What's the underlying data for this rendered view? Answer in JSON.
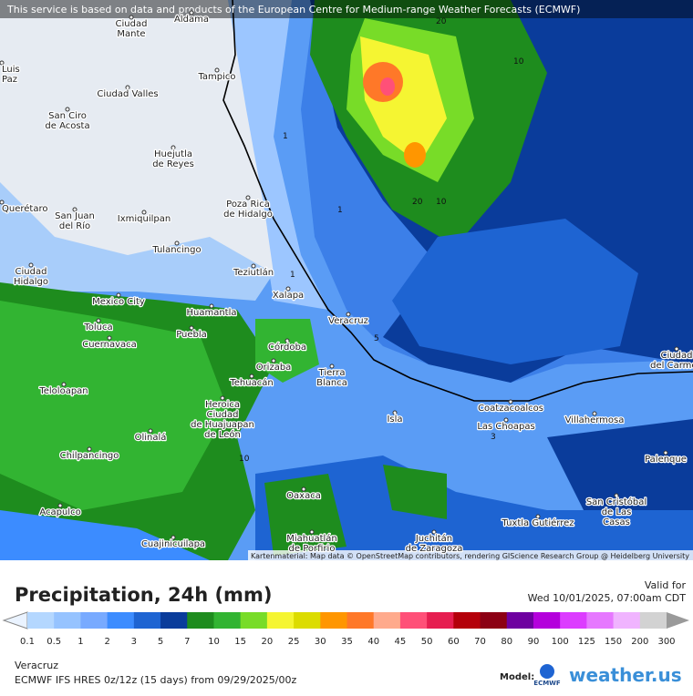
{
  "header": {
    "notice": "This service is based on data and products of the European Centre for Medium-range Weather Forecasts (ECMWF)",
    "attribution": "Kartenmaterial: Map data © OpenStreetMap contributors, rendering GIScience Research Group @ Heidelberg University"
  },
  "map": {
    "places": [
      {
        "lines": [
          "Ciudad",
          "Mante"
        ]
      },
      {
        "lines": [
          "Aldama"
        ]
      },
      {
        "lines": [
          "Tampico"
        ]
      },
      {
        "lines": [
          "Ciudad Valles"
        ]
      },
      {
        "lines": [
          "San Ciro",
          "de Acosta"
        ]
      },
      {
        "lines": [
          "Luis",
          "Paz"
        ]
      },
      {
        "lines": [
          "Huejutla",
          "de Reyes"
        ]
      },
      {
        "lines": [
          "Poza Rica",
          "de Hidalgo"
        ]
      },
      {
        "lines": [
          "Querétaro"
        ]
      },
      {
        "lines": [
          "San Juan",
          "del Río"
        ]
      },
      {
        "lines": [
          "Ixmiquilpan"
        ]
      },
      {
        "lines": [
          "Tulancingo"
        ]
      },
      {
        "lines": [
          "Ciudad",
          "Hidalgo"
        ]
      },
      {
        "lines": [
          "Teziutlán"
        ]
      },
      {
        "lines": [
          "Xalapa"
        ]
      },
      {
        "lines": [
          "Mexico City"
        ]
      },
      {
        "lines": [
          "Huamantla"
        ]
      },
      {
        "lines": [
          "Veracruz"
        ]
      },
      {
        "lines": [
          "Toluca"
        ]
      },
      {
        "lines": [
          "Puebla"
        ]
      },
      {
        "lines": [
          "Cuernavaca"
        ]
      },
      {
        "lines": [
          "Córdoba"
        ]
      },
      {
        "lines": [
          "Orizaba"
        ]
      },
      {
        "lines": [
          "Teloloapan"
        ]
      },
      {
        "lines": [
          "Tehuacán"
        ]
      },
      {
        "lines": [
          "Tierra",
          "Blanca"
        ]
      },
      {
        "lines": [
          "Heroica",
          "Ciudad",
          "de Huajuapan",
          "de León"
        ]
      },
      {
        "lines": [
          "Olinalá"
        ]
      },
      {
        "lines": [
          "Isla"
        ]
      },
      {
        "lines": [
          "Coatzacoalcos"
        ]
      },
      {
        "lines": [
          "Las Choapas"
        ]
      },
      {
        "lines": [
          "Villahermosa"
        ]
      },
      {
        "lines": [
          "Chilpancingo"
        ]
      },
      {
        "lines": [
          "Oaxaca"
        ]
      },
      {
        "lines": [
          "Acapulco"
        ]
      },
      {
        "lines": [
          "Miahuatlán",
          "de Porfirio"
        ]
      },
      {
        "lines": [
          "Juchitán",
          "de Zaragoza"
        ]
      },
      {
        "lines": [
          "Tuxtla Gutiérrez"
        ]
      },
      {
        "lines": [
          "San Cristóbal",
          "de Las",
          "Casas"
        ]
      },
      {
        "lines": [
          "Palenque"
        ]
      },
      {
        "lines": [
          "Ciudad",
          "del Carmen"
        ]
      },
      {
        "lines": [
          "Cuajinicuilapa"
        ]
      }
    ],
    "contours": [
      "20",
      "10",
      "20",
      "10",
      "1",
      "1",
      "1",
      "10",
      "5",
      "3"
    ]
  },
  "footer": {
    "title": "Precipitation, 24h (mm)",
    "valid_label": "Valid for",
    "valid_time": "Wed 10/01/2025, 07:00am CDT",
    "location": "Veracruz",
    "model_run": "ECMWF IFS HRES 0z/12z (15 days) from  09/29/2025/00z",
    "model_label": "Model:",
    "model_name": "ECMWF",
    "brand": "weather.us"
  },
  "legend": {
    "under_color": "#eaf3ff",
    "over_color": "#9a9a9a",
    "ticks": [
      "0.1",
      "0.5",
      "1",
      "2",
      "3",
      "5",
      "7",
      "10",
      "15",
      "20",
      "25",
      "30",
      "35",
      "40",
      "45",
      "50",
      "60",
      "70",
      "80",
      "90",
      "100",
      "125",
      "150",
      "200",
      "300"
    ],
    "colors": [
      "#b4d7ff",
      "#96c3ff",
      "#78aaff",
      "#3c8cff",
      "#1e64d2",
      "#0a3c9b",
      "#1e8c1e",
      "#32b432",
      "#78dc28",
      "#f5f532",
      "#dcdc00",
      "#ff9600",
      "#ff7828",
      "#ffaa8c",
      "#ff5078",
      "#e61e50",
      "#b4000a",
      "#8c0014",
      "#6e00a0",
      "#b400dc",
      "#dc3cff",
      "#e678ff",
      "#f0b4ff",
      "#d2d2d2"
    ]
  }
}
